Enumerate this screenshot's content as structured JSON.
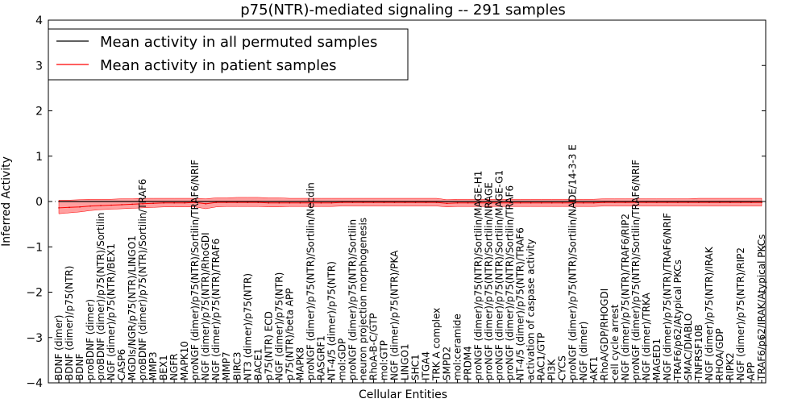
{
  "chart_data": {
    "type": "line",
    "title": "p75(NTR)-mediated signaling -- 291 samples",
    "xlabel": "Cellular Entities",
    "ylabel": "Inferred Activity",
    "ylim": [
      -4,
      4
    ],
    "yticks": [
      "4",
      "3",
      "2",
      "1",
      "0",
      "−1",
      "−2",
      "−3",
      "−4"
    ],
    "ytick_values": [
      4,
      3,
      2,
      1,
      0,
      -1,
      -2,
      -3,
      -4
    ],
    "legend": {
      "placement": "top-left",
      "entries": [
        {
          "label": "Mean activity in all permuted samples",
          "color": "#000000"
        },
        {
          "label": "Mean activity in patient samples",
          "color": "#ff0000"
        }
      ]
    },
    "band_color": "#ff8080",
    "entities": [
      "BDNF (dimer)",
      "BDNF (dimer)/p75(NTR)",
      "BDNF",
      "proBDNF (dimer)",
      "proBDNF (dimer)/p75(NTR)/Sortilin",
      "NGF (dimer)/p75(NTR)/BEX1",
      "CASP6",
      "MGDIs/NGR/p75(NTR)/LINGO1",
      "proBDNF (dimer)/p75(NTR)/Sortilin/TRAF6",
      "MMP3",
      "BEX1",
      "NGFR",
      "MAPK10",
      "proNGF (dimer)/p75(NTR)/Sortilin/TRAF6/NRIF",
      "NGF (dimer)/p75(NTR)/RhoGDI",
      "NGF (dimer)/p75(NTR)/TRAF6",
      "MMP7",
      "BIRC3",
      "NT3 (dimer)/p75(NTR)",
      "BACE1",
      "p75(NTR) ECD",
      "NGF (dimer)/p75(NTR)",
      "p75(NTR)/beta APP",
      "MAPK8",
      "proNGF (dimer)/p75(NTR)/Sortilin/Necdin",
      "RASGRF1",
      "NT-4/5 (dimer)/p75(NTR)",
      "mol:GDP",
      "proNGF (dimer)/p75(NTR)/Sortilin",
      "neuron projection morphogenesis",
      "RhoA-B-C/GTP",
      "mol:GTP",
      "NGF (dimer)/p75(NTR)/PKA",
      "LINGO1",
      "SHC1",
      "ITGA4",
      "TRK A complex",
      "SMPD2",
      "mol:ceramide",
      "PRDM4",
      "proNGF (dimer)/p75(NTR)/Sortilin/MAGE-H1",
      "proNGF (dimer)/p75(NTR)/Sortilin/NRAGE",
      "proNGF (dimer)/p75(NTR)/Sortilin/MAGE-G1",
      "proNGF (dimer)/p75(NTR)/Sortilin/TRAF6",
      "NT-4/5 (dimer)/p75(NTR)/TRAF6",
      "activation of caspase activity",
      "RAC1/GTP",
      "PI3K",
      "CYCS",
      "proNGF (dimer)/p75(NTR)/Sortilin/NADE/14-3-3 E",
      "NGF (dimer)",
      "AKT1",
      "RhoA/GDP/RHOGDI",
      "cell cycle arrest",
      "NGF (dimer)/p75(NTR)/TRAF6/RIP2",
      "proNGF (dimer)/p75(NTR)/Sortilin/TRAF6/NRIF",
      "NGF (dimer)/TRKA",
      "MAGED1",
      "NGF (dimer)/p75(NTR)/TRAF6/NRIF",
      "TRAF6/p62/Atypical PKCs",
      "SMAC/DIABLO",
      "TNFRSF10B",
      "NGF (dimer)/p75(NTR)/IRAK",
      "RHOA/GDP",
      "RIPK2",
      "NGF (dimer)/p75(NTR)/RIP2",
      "APP",
      "TRAF6/p62/IRAK/Atypical PKCs"
    ],
    "series": [
      {
        "name": "Mean activity in all permuted samples",
        "values": [
          0,
          0,
          0,
          0,
          0,
          0,
          0,
          0,
          0,
          0,
          0,
          0,
          0,
          0,
          0,
          0,
          0,
          0,
          0,
          0,
          0,
          0,
          0,
          0,
          0,
          0,
          0,
          0,
          0,
          0,
          0,
          0,
          0,
          0,
          0,
          0,
          0,
          0,
          0,
          0,
          0,
          0,
          0,
          0,
          0,
          0,
          0,
          0,
          0,
          0,
          0,
          0,
          0,
          0,
          0,
          0,
          0,
          0,
          0,
          0,
          0,
          0,
          0,
          0,
          0,
          0,
          0,
          0
        ]
      },
      {
        "name": "Mean activity in patient samples",
        "values": [
          -0.14,
          -0.13,
          -0.12,
          -0.1,
          -0.09,
          -0.08,
          -0.07,
          -0.06,
          -0.05,
          -0.04,
          -0.03,
          -0.03,
          -0.03,
          -0.02,
          -0.05,
          -0.02,
          -0.02,
          -0.02,
          -0.02,
          -0.02,
          -0.03,
          -0.03,
          -0.03,
          -0.03,
          -0.03,
          -0.03,
          -0.03,
          -0.02,
          -0.02,
          -0.02,
          -0.02,
          -0.02,
          -0.02,
          -0.02,
          -0.02,
          -0.02,
          -0.02,
          -0.04,
          -0.03,
          -0.03,
          -0.03,
          -0.03,
          -0.03,
          -0.03,
          -0.03,
          -0.03,
          -0.03,
          -0.03,
          -0.03,
          -0.03,
          -0.03,
          -0.03,
          -0.02,
          -0.02,
          -0.02,
          -0.02,
          -0.02,
          -0.02,
          -0.02,
          -0.02,
          -0.02,
          -0.02,
          -0.02,
          -0.02,
          -0.02,
          -0.02,
          -0.02,
          -0.02
        ],
        "lower": [
          -0.27,
          -0.25,
          -0.23,
          -0.2,
          -0.18,
          -0.17,
          -0.16,
          -0.15,
          -0.14,
          -0.13,
          -0.12,
          -0.12,
          -0.12,
          -0.12,
          -0.16,
          -0.12,
          -0.11,
          -0.11,
          -0.11,
          -0.11,
          -0.12,
          -0.12,
          -0.11,
          -0.11,
          -0.11,
          -0.11,
          -0.11,
          -0.1,
          -0.1,
          -0.1,
          -0.1,
          -0.1,
          -0.1,
          -0.1,
          -0.1,
          -0.1,
          -0.1,
          -0.12,
          -0.11,
          -0.11,
          -0.11,
          -0.11,
          -0.11,
          -0.11,
          -0.11,
          -0.11,
          -0.11,
          -0.11,
          -0.11,
          -0.11,
          -0.11,
          -0.11,
          -0.1,
          -0.1,
          -0.1,
          -0.1,
          -0.1,
          -0.1,
          -0.1,
          -0.1,
          -0.1,
          -0.1,
          -0.1,
          -0.1,
          -0.1,
          -0.1,
          -0.1,
          -0.1
        ],
        "upper": [
          0.03,
          0.03,
          0.04,
          0.05,
          0.05,
          0.05,
          0.06,
          0.06,
          0.07,
          0.07,
          0.07,
          0.07,
          0.07,
          0.07,
          0.06,
          0.08,
          0.08,
          0.09,
          0.09,
          0.09,
          0.08,
          0.08,
          0.07,
          0.07,
          0.07,
          0.07,
          0.07,
          0.07,
          0.07,
          0.07,
          0.07,
          0.07,
          0.07,
          0.07,
          0.07,
          0.07,
          0.07,
          0.04,
          0.05,
          0.05,
          0.05,
          0.05,
          0.05,
          0.05,
          0.05,
          0.05,
          0.05,
          0.05,
          0.05,
          0.05,
          0.05,
          0.05,
          0.06,
          0.06,
          0.06,
          0.06,
          0.06,
          0.06,
          0.06,
          0.06,
          0.06,
          0.07,
          0.07,
          0.07,
          0.07,
          0.07,
          0.07,
          0.07
        ]
      }
    ],
    "zero_line": true
  }
}
